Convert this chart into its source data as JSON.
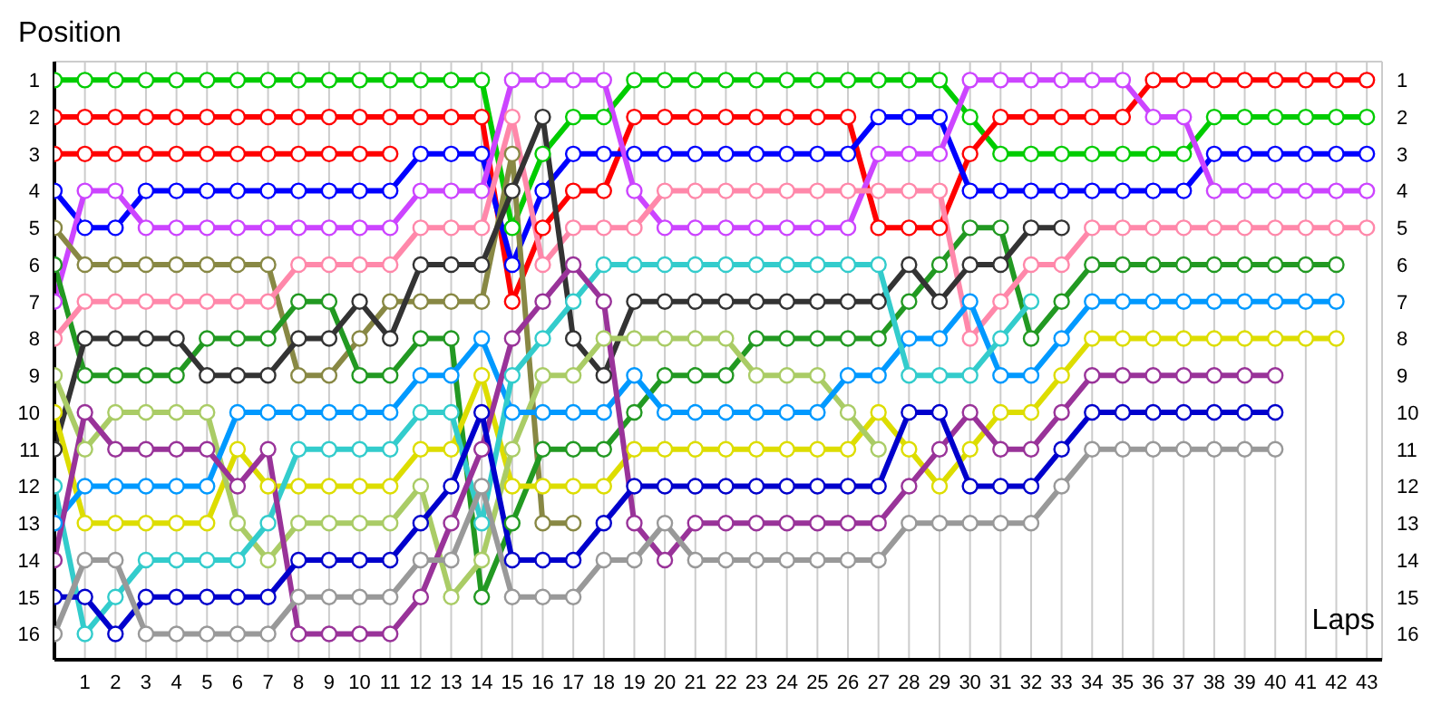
{
  "chart_data": {
    "type": "line",
    "xlabel": "Laps",
    "ylabel": "Position",
    "x": [
      0,
      1,
      2,
      3,
      4,
      5,
      6,
      7,
      8,
      9,
      10,
      11,
      12,
      13,
      14,
      15,
      16,
      17,
      18,
      19,
      20,
      21,
      22,
      23,
      24,
      25,
      26,
      27,
      28,
      29,
      30,
      31,
      32,
      33,
      34,
      35,
      36,
      37,
      38,
      39,
      40,
      41,
      42,
      43
    ],
    "xlim": [
      0,
      43.5
    ],
    "xticks": [
      1,
      2,
      3,
      4,
      5,
      6,
      7,
      8,
      9,
      10,
      11,
      12,
      13,
      14,
      15,
      16,
      17,
      18,
      19,
      20,
      21,
      22,
      23,
      24,
      25,
      26,
      27,
      28,
      29,
      30,
      31,
      32,
      33,
      34,
      35,
      36,
      37,
      38,
      39,
      40,
      41,
      42,
      43
    ],
    "ylim": [
      16.7,
      0.5
    ],
    "yticks": [
      1,
      2,
      3,
      4,
      5,
      6,
      7,
      8,
      9,
      10,
      11,
      12,
      13,
      14,
      15,
      16
    ],
    "y2lim": [
      16.7,
      0.5
    ],
    "y2ticks": [
      1,
      2,
      3,
      4,
      5,
      6,
      7,
      8,
      9,
      10,
      11,
      12,
      13,
      14,
      15,
      16
    ],
    "grid": true,
    "marker": "circle",
    "line_style": "solid",
    "series": [
      {
        "color": "#00cc00",
        "values": [
          1,
          1,
          1,
          1,
          1,
          1,
          1,
          1,
          1,
          1,
          1,
          1,
          1,
          1,
          1,
          5,
          3,
          2,
          2,
          1,
          1,
          1,
          1,
          1,
          1,
          1,
          1,
          1,
          1,
          1,
          2,
          3,
          3,
          3,
          3,
          3,
          3,
          3,
          2,
          2,
          2,
          2,
          2,
          2
        ]
      },
      {
        "color": "#ff0000",
        "values": [
          2,
          2,
          2,
          2,
          2,
          2,
          2,
          2,
          2,
          2,
          2,
          2,
          2,
          2,
          2,
          7,
          5,
          4,
          4,
          2,
          2,
          2,
          2,
          2,
          2,
          2,
          2,
          5,
          5,
          5,
          3,
          2,
          2,
          2,
          2,
          2,
          1,
          1,
          1,
          1,
          1,
          1,
          1,
          1
        ]
      },
      {
        "color": "#ff0000",
        "values": [
          3,
          3,
          3,
          3,
          3,
          3,
          3,
          3,
          3,
          3,
          3,
          3,
          null,
          null,
          null,
          null,
          null,
          null,
          null,
          null,
          null,
          null,
          null,
          null,
          null,
          null,
          null,
          null,
          null,
          null,
          null,
          null,
          null,
          null,
          null,
          null,
          null,
          null,
          null,
          null,
          null,
          null,
          null,
          null
        ]
      },
      {
        "color": "#0000ff",
        "values": [
          4,
          5,
          5,
          4,
          4,
          4,
          4,
          4,
          4,
          4,
          4,
          4,
          3,
          3,
          3,
          6,
          4,
          3,
          3,
          3,
          3,
          3,
          3,
          3,
          3,
          3,
          3,
          2,
          2,
          2,
          4,
          4,
          4,
          4,
          4,
          4,
          4,
          4,
          3,
          3,
          3,
          3,
          3,
          3
        ]
      },
      {
        "color": "#cc44ff",
        "values": [
          7,
          4,
          4,
          5,
          5,
          5,
          5,
          5,
          5,
          5,
          5,
          5,
          4,
          4,
          4,
          1,
          1,
          1,
          1,
          4,
          5,
          5,
          5,
          5,
          5,
          5,
          5,
          3,
          3,
          3,
          1,
          1,
          1,
          1,
          1,
          1,
          2,
          2,
          4,
          4,
          4,
          4,
          4,
          4
        ]
      },
      {
        "color": "#888844",
        "values": [
          5,
          6,
          6,
          6,
          6,
          6,
          6,
          6,
          9,
          9,
          8,
          7,
          7,
          7,
          7,
          3,
          13,
          13,
          null,
          null,
          null,
          null,
          null,
          null,
          null,
          null,
          null,
          null,
          null,
          null,
          null,
          null,
          null,
          null,
          null,
          null,
          null,
          null,
          null,
          null,
          null,
          null,
          null,
          null
        ]
      },
      {
        "color": "#229922",
        "values": [
          6,
          9,
          9,
          9,
          9,
          8,
          8,
          8,
          7,
          7,
          9,
          9,
          8,
          8,
          15,
          13,
          11,
          11,
          11,
          10,
          9,
          9,
          9,
          8,
          8,
          8,
          8,
          8,
          7,
          6,
          5,
          5,
          8,
          7,
          6,
          6,
          6,
          6,
          6,
          6,
          6,
          6,
          6,
          null
        ]
      },
      {
        "color": "#ff88aa",
        "values": [
          8,
          7,
          7,
          7,
          7,
          7,
          7,
          7,
          6,
          6,
          6,
          6,
          5,
          5,
          5,
          2,
          6,
          5,
          5,
          5,
          4,
          4,
          4,
          4,
          4,
          4,
          4,
          4,
          4,
          4,
          8,
          7,
          6,
          6,
          5,
          5,
          5,
          5,
          5,
          5,
          5,
          5,
          5,
          5
        ]
      },
      {
        "color": "#333333",
        "values": [
          11,
          8,
          8,
          8,
          8,
          9,
          9,
          9,
          8,
          8,
          7,
          8,
          6,
          6,
          6,
          4,
          2,
          8,
          9,
          7,
          7,
          7,
          7,
          7,
          7,
          7,
          7,
          7,
          6,
          7,
          6,
          6,
          5,
          5,
          null,
          null,
          null,
          null,
          null,
          null,
          null,
          null,
          null,
          null
        ]
      },
      {
        "color": "#dddd00",
        "values": [
          10,
          13,
          13,
          13,
          13,
          13,
          11,
          12,
          12,
          12,
          12,
          12,
          11,
          11,
          9,
          12,
          12,
          12,
          12,
          11,
          11,
          11,
          11,
          11,
          11,
          11,
          11,
          10,
          11,
          12,
          11,
          10,
          10,
          9,
          8,
          8,
          8,
          8,
          8,
          8,
          8,
          8,
          8,
          null
        ]
      },
      {
        "color": "#aacc66",
        "values": [
          9,
          11,
          10,
          10,
          10,
          10,
          13,
          14,
          13,
          13,
          13,
          13,
          12,
          15,
          14,
          11,
          9,
          9,
          8,
          8,
          8,
          8,
          8,
          9,
          9,
          9,
          10,
          11,
          null,
          null,
          null,
          null,
          null,
          null,
          null,
          null,
          null,
          null,
          null,
          null,
          null,
          null,
          null,
          null
        ]
      },
      {
        "color": "#0099ff",
        "values": [
          13,
          12,
          12,
          12,
          12,
          12,
          10,
          10,
          10,
          10,
          10,
          10,
          9,
          9,
          8,
          10,
          10,
          10,
          10,
          9,
          10,
          10,
          10,
          10,
          10,
          10,
          9,
          9,
          8,
          8,
          7,
          9,
          9,
          8,
          7,
          7,
          7,
          7,
          7,
          7,
          7,
          7,
          7,
          null
        ]
      },
      {
        "color": "#33cccc",
        "values": [
          12,
          16,
          15,
          14,
          14,
          14,
          14,
          13,
          11,
          11,
          11,
          11,
          10,
          10,
          13,
          9,
          8,
          7,
          6,
          6,
          6,
          6,
          6,
          6,
          6,
          6,
          6,
          6,
          9,
          9,
          9,
          8,
          7,
          null,
          null,
          null,
          null,
          null,
          null,
          null,
          null,
          null,
          null,
          null
        ]
      },
      {
        "color": "#993399",
        "values": [
          14,
          10,
          11,
          11,
          11,
          11,
          12,
          11,
          16,
          16,
          16,
          16,
          15,
          13,
          11,
          8,
          7,
          6,
          7,
          13,
          14,
          13,
          13,
          13,
          13,
          13,
          13,
          13,
          12,
          11,
          10,
          11,
          11,
          10,
          9,
          9,
          9,
          9,
          9,
          9,
          9,
          null,
          null,
          null
        ]
      },
      {
        "color": "#0000cc",
        "values": [
          15,
          15,
          16,
          15,
          15,
          15,
          15,
          15,
          14,
          14,
          14,
          14,
          13,
          12,
          10,
          14,
          14,
          14,
          13,
          12,
          12,
          12,
          12,
          12,
          12,
          12,
          12,
          12,
          10,
          10,
          12,
          12,
          12,
          11,
          10,
          10,
          10,
          10,
          10,
          10,
          10,
          null,
          null,
          null
        ]
      },
      {
        "color": "#999999",
        "values": [
          16,
          14,
          14,
          16,
          16,
          16,
          16,
          16,
          15,
          15,
          15,
          15,
          14,
          14,
          12,
          15,
          15,
          15,
          14,
          14,
          13,
          14,
          14,
          14,
          14,
          14,
          14,
          14,
          13,
          13,
          13,
          13,
          13,
          12,
          11,
          11,
          11,
          11,
          11,
          11,
          11,
          null,
          null,
          null
        ]
      }
    ]
  }
}
